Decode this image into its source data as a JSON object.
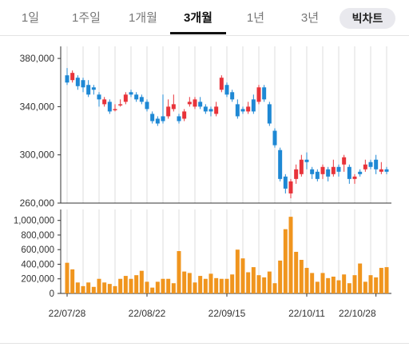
{
  "tabs": [
    {
      "label": "1일",
      "active": false
    },
    {
      "label": "1주일",
      "active": false
    },
    {
      "label": "1개월",
      "active": false
    },
    {
      "label": "3개월",
      "active": true
    },
    {
      "label": "1년",
      "active": false
    },
    {
      "label": "3년",
      "active": false
    }
  ],
  "bigchart_label": "빅차트",
  "colors": {
    "up": "#e8333a",
    "down": "#1e88d4",
    "volume": "#f0951e",
    "grid": "#dddddd"
  },
  "chart_data": [
    {
      "type": "candlestick",
      "ylim": [
        260000,
        390000
      ],
      "yticks": [
        {
          "value": 380000,
          "label": "380,000"
        },
        {
          "value": 340000,
          "label": "340,000"
        },
        {
          "value": 300000,
          "label": "300,000"
        },
        {
          "value": 260000,
          "label": "260,000"
        }
      ],
      "candles": [
        [
          366000,
          360000,
          372000,
          358000
        ],
        [
          362000,
          368000,
          370000,
          360000
        ],
        [
          364000,
          357000,
          366000,
          354000
        ],
        [
          362000,
          356000,
          364000,
          352000
        ],
        [
          358000,
          350000,
          362000,
          348000
        ],
        [
          356000,
          354000,
          358000,
          350000
        ],
        [
          350000,
          346000,
          352000,
          340000
        ],
        [
          342000,
          346000,
          348000,
          340000
        ],
        [
          344000,
          336000,
          346000,
          334000
        ],
        [
          338000,
          338000,
          342000,
          336000
        ],
        [
          342000,
          342000,
          346000,
          340000
        ],
        [
          344000,
          350000,
          352000,
          342000
        ],
        [
          352000,
          350000,
          354000,
          348000
        ],
        [
          350000,
          346000,
          352000,
          344000
        ],
        [
          348000,
          344000,
          350000,
          342000
        ],
        [
          344000,
          338000,
          346000,
          336000
        ],
        [
          334000,
          328000,
          336000,
          326000
        ],
        [
          330000,
          326000,
          332000,
          324000
        ],
        [
          332000,
          328000,
          350000,
          326000
        ],
        [
          332000,
          340000,
          346000,
          330000
        ],
        [
          338000,
          342000,
          350000,
          336000
        ],
        [
          332000,
          328000,
          334000,
          326000
        ],
        [
          330000,
          336000,
          338000,
          328000
        ],
        [
          342000,
          344000,
          348000,
          340000
        ],
        [
          340000,
          346000,
          348000,
          338000
        ],
        [
          344000,
          340000,
          348000,
          338000
        ],
        [
          340000,
          336000,
          342000,
          334000
        ],
        [
          338000,
          336000,
          340000,
          332000
        ],
        [
          334000,
          340000,
          344000,
          332000
        ],
        [
          354000,
          364000,
          366000,
          352000
        ],
        [
          358000,
          350000,
          360000,
          348000
        ],
        [
          352000,
          346000,
          354000,
          344000
        ],
        [
          342000,
          332000,
          346000,
          330000
        ],
        [
          338000,
          336000,
          340000,
          334000
        ],
        [
          336000,
          340000,
          344000,
          334000
        ],
        [
          346000,
          336000,
          350000,
          334000
        ],
        [
          344000,
          356000,
          358000,
          342000
        ],
        [
          356000,
          346000,
          358000,
          344000
        ],
        [
          342000,
          326000,
          344000,
          324000
        ],
        [
          320000,
          308000,
          322000,
          306000
        ],
        [
          304000,
          280000,
          306000,
          278000
        ],
        [
          282000,
          272000,
          284000,
          268000
        ],
        [
          268000,
          278000,
          280000,
          264000
        ],
        [
          280000,
          288000,
          292000,
          276000
        ],
        [
          284000,
          296000,
          300000,
          282000
        ],
        [
          296000,
          294000,
          302000,
          288000
        ],
        [
          288000,
          284000,
          290000,
          280000
        ],
        [
          286000,
          280000,
          288000,
          278000
        ],
        [
          284000,
          290000,
          292000,
          280000
        ],
        [
          288000,
          282000,
          290000,
          278000
        ],
        [
          284000,
          290000,
          296000,
          282000
        ],
        [
          290000,
          286000,
          292000,
          282000
        ],
        [
          292000,
          298000,
          300000,
          286000
        ],
        [
          290000,
          280000,
          292000,
          276000
        ],
        [
          280000,
          282000,
          284000,
          276000
        ],
        [
          286000,
          284000,
          288000,
          282000
        ],
        [
          288000,
          292000,
          296000,
          286000
        ],
        [
          294000,
          290000,
          296000,
          288000
        ],
        [
          296000,
          288000,
          300000,
          284000
        ],
        [
          286000,
          288000,
          294000,
          284000
        ],
        [
          288000,
          286000,
          290000,
          284000
        ]
      ],
      "volume_ylim": [
        0,
        1150000
      ],
      "volume_ticks": [
        {
          "value": 1000000,
          "label": "1,000,000"
        },
        {
          "value": 800000,
          "label": "800,000"
        },
        {
          "value": 600000,
          "label": "600,000"
        },
        {
          "value": 400000,
          "label": "400,000"
        },
        {
          "value": 200000,
          "label": "200,000"
        },
        {
          "value": 0,
          "label": "0"
        }
      ],
      "volumes": [
        420000,
        330000,
        150000,
        100000,
        150000,
        90000,
        200000,
        150000,
        130000,
        100000,
        200000,
        240000,
        200000,
        250000,
        310000,
        160000,
        80000,
        160000,
        200000,
        200000,
        140000,
        580000,
        300000,
        280000,
        150000,
        240000,
        200000,
        270000,
        210000,
        200000,
        200000,
        260000,
        600000,
        480000,
        290000,
        360000,
        250000,
        220000,
        300000,
        140000,
        450000,
        880000,
        1050000,
        570000,
        460000,
        350000,
        280000,
        160000,
        280000,
        210000,
        230000,
        180000,
        260000,
        140000,
        250000,
        410000,
        160000,
        250000,
        220000,
        350000,
        360000
      ],
      "date_labels": [
        {
          "index": 0,
          "label": "22/07/28"
        },
        {
          "index": 15,
          "label": "22/08/22"
        },
        {
          "index": 30,
          "label": "22/09/15"
        },
        {
          "index": 45,
          "label": "22/10/11"
        },
        {
          "index": 58,
          "label": "22/10/28"
        }
      ]
    }
  ]
}
